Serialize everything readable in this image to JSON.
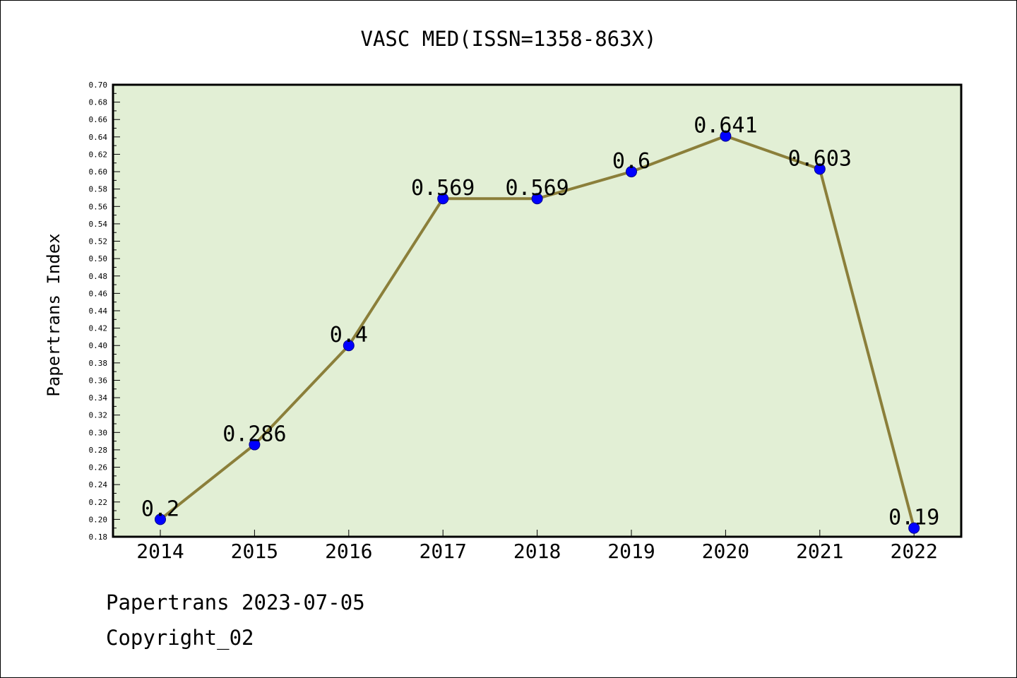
{
  "footer": {
    "line1": "Papertrans 2023-07-05",
    "line2": "Copyright_02"
  },
  "chart_data": {
    "type": "line",
    "title": "VASC MED(ISSN=1358-863X)",
    "xlabel": "",
    "ylabel": "Papertrans Index",
    "categories": [
      "2014",
      "2015",
      "2016",
      "2017",
      "2018",
      "2019",
      "2020",
      "2021",
      "2022"
    ],
    "series": [
      {
        "values": [
          0.2,
          0.286,
          0.4,
          0.569,
          0.569,
          0.6,
          0.641,
          0.603,
          0.19
        ],
        "data_labels": [
          "0.2",
          "0.286",
          "0.4",
          "0.569",
          "0.569",
          "0.6",
          "0.641",
          "0.603",
          "0.19"
        ]
      }
    ],
    "ylim": [
      0.18,
      0.7
    ],
    "yticks": [
      "0.18",
      "0.20",
      "0.22",
      "0.24",
      "0.26",
      "0.28",
      "0.30",
      "0.32",
      "0.34",
      "0.36",
      "0.38",
      "0.40",
      "0.42",
      "0.44",
      "0.46",
      "0.48",
      "0.50",
      "0.52",
      "0.54",
      "0.56",
      "0.58",
      "0.60",
      "0.62",
      "0.64",
      "0.66",
      "0.68",
      "0.70"
    ],
    "grid": false,
    "colors": {
      "plot_background": "#e2efd5",
      "line": "#8b7f3a",
      "marker": "#0000ff"
    }
  }
}
